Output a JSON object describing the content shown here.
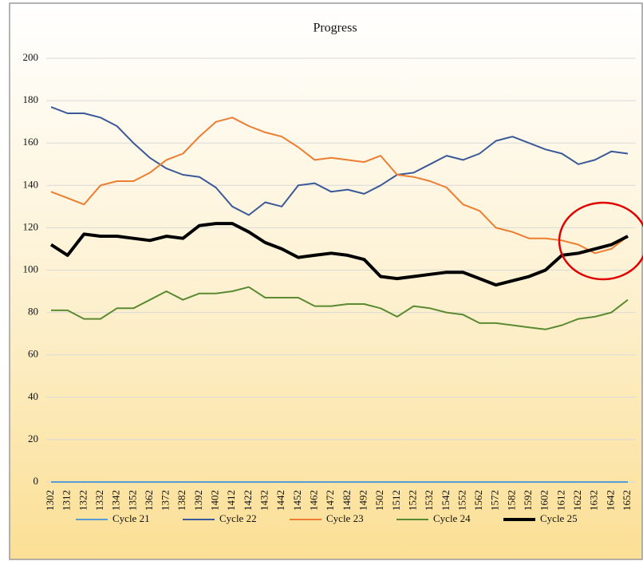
{
  "chart_data": {
    "type": "line",
    "title": "Progress",
    "categories": [
      "1302",
      "1312",
      "1322",
      "1332",
      "1342",
      "1352",
      "1362",
      "1372",
      "1382",
      "1392",
      "1402",
      "1412",
      "1422",
      "1432",
      "1442",
      "1452",
      "1462",
      "1472",
      "1482",
      "1492",
      "1502",
      "1512",
      "1522",
      "1532",
      "1542",
      "1552",
      "1562",
      "1572",
      "1582",
      "1592",
      "1602",
      "1612",
      "1622",
      "1632",
      "1642",
      "1652"
    ],
    "ylim": [
      0,
      200
    ],
    "yticks": [
      0,
      20,
      40,
      60,
      80,
      100,
      120,
      140,
      160,
      180,
      200
    ],
    "grid": true,
    "legend": "bottom",
    "series": [
      {
        "name": "Cycle 21",
        "color": "#5b9bd5",
        "values": [
          0,
          0,
          0,
          0,
          0,
          0,
          0,
          0,
          0,
          0,
          0,
          0,
          0,
          0,
          0,
          0,
          0,
          0,
          0,
          0,
          0,
          0,
          0,
          0,
          0,
          0,
          0,
          0,
          0,
          0,
          0,
          0,
          0,
          0,
          0,
          0
        ]
      },
      {
        "name": "Cycle 22",
        "color": "#3b5998",
        "values": [
          177,
          174,
          174,
          172,
          168,
          160,
          153,
          148,
          145,
          144,
          139,
          130,
          126,
          132,
          130,
          140,
          141,
          137,
          138,
          136,
          140,
          145,
          146,
          150,
          154,
          152,
          155,
          161,
          163,
          160,
          157,
          155,
          150,
          152,
          156,
          155
        ]
      },
      {
        "name": "Cycle 23",
        "color": "#ed7d31",
        "values": [
          137,
          134,
          131,
          140,
          142,
          142,
          146,
          152,
          155,
          163,
          170,
          172,
          168,
          165,
          163,
          158,
          152,
          153,
          152,
          151,
          154,
          145,
          144,
          142,
          139,
          131,
          128,
          120,
          118,
          115,
          115,
          114,
          112,
          108,
          110,
          116
        ]
      },
      {
        "name": "Cycle 24",
        "color": "#5a8a32",
        "values": [
          81,
          81,
          77,
          77,
          82,
          82,
          86,
          90,
          86,
          89,
          89,
          90,
          92,
          87,
          87,
          87,
          83,
          83,
          84,
          84,
          82,
          78,
          83,
          82,
          80,
          79,
          75,
          75,
          74,
          73,
          72,
          74,
          77,
          78,
          80,
          86
        ]
      },
      {
        "name": "Cycle 25",
        "color": "#000000",
        "values": [
          112,
          107,
          117,
          116,
          116,
          115,
          114,
          116,
          115,
          121,
          122,
          122,
          118,
          113,
          110,
          106,
          107,
          108,
          107,
          105,
          97,
          96,
          97,
          98,
          99,
          99,
          96,
          93,
          95,
          97,
          100,
          107,
          108,
          110,
          112,
          116
        ]
      }
    ]
  }
}
